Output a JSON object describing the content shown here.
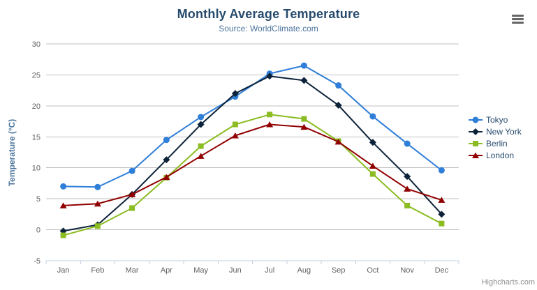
{
  "chart_data": {
    "type": "line",
    "title": "Monthly Average Temperature",
    "subtitle": "Source: WorldClimate.com",
    "xlabel": "",
    "ylabel": "Temperature (°C)",
    "ylim": [
      -5,
      30
    ],
    "yticks": [
      -5,
      0,
      5,
      10,
      15,
      20,
      25,
      30
    ],
    "grid": true,
    "legend_position": "right",
    "categories": [
      "Jan",
      "Feb",
      "Mar",
      "Apr",
      "May",
      "Jun",
      "Jul",
      "Aug",
      "Sep",
      "Oct",
      "Nov",
      "Dec"
    ],
    "series": [
      {
        "name": "Tokyo",
        "color": "#2f7ed8",
        "marker": "circle",
        "values": [
          7.0,
          6.9,
          9.5,
          14.5,
          18.2,
          21.5,
          25.2,
          26.5,
          23.3,
          18.3,
          13.9,
          9.6
        ]
      },
      {
        "name": "New York",
        "color": "#0d233a",
        "marker": "diamond",
        "values": [
          -0.2,
          0.8,
          5.7,
          11.3,
          17.0,
          22.0,
          24.8,
          24.1,
          20.1,
          14.1,
          8.6,
          2.5
        ]
      },
      {
        "name": "Berlin",
        "color": "#8bbc21",
        "marker": "square",
        "values": [
          -0.9,
          0.6,
          3.5,
          8.4,
          13.5,
          17.0,
          18.6,
          17.9,
          14.3,
          9.0,
          3.9,
          1.0
        ]
      },
      {
        "name": "London",
        "color": "#910000",
        "marker": "triangle",
        "values": [
          3.9,
          4.2,
          5.7,
          8.5,
          11.9,
          15.2,
          17.0,
          16.6,
          14.2,
          10.3,
          6.6,
          4.8
        ]
      }
    ],
    "style": {
      "title_color": "#274b6d",
      "subtitle_color": "#4d759e",
      "yaxis_title_color": "#4d759e",
      "tick_label_color": "#606060",
      "grid_color": "#c0c0c0",
      "axis_line_color": "#c0d0e0",
      "legend_text_color": "#274b6d",
      "credit_color": "#909090"
    }
  },
  "export_menu": {
    "icon": "hamburger-icon"
  },
  "credit": {
    "label": "Highcharts.com"
  }
}
